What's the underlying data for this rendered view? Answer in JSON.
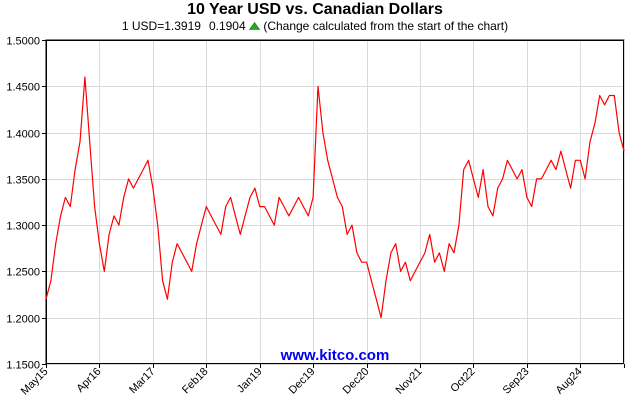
{
  "chart_data": {
    "type": "line",
    "title": "10 Year USD vs. Canadian Dollars",
    "subtitle": {
      "rate_text": "1 USD=1.3919",
      "change_value": "0.1904",
      "change_note": "(Change calculated from the start of the chart)"
    },
    "watermark": "www.kitco.com",
    "ylim": [
      1.15,
      1.5
    ],
    "yticks": [
      1.15,
      1.2,
      1.25,
      1.3,
      1.35,
      1.4,
      1.45,
      1.5
    ],
    "ytick_labels": [
      "1.1500",
      "1.2000",
      "1.2500",
      "1.3000",
      "1.3500",
      "1.4000",
      "1.4500",
      "1.5000"
    ],
    "xlim": [
      0,
      119
    ],
    "xticks": [
      0,
      11,
      22,
      33,
      44,
      55,
      66,
      77,
      88,
      99,
      110,
      119
    ],
    "xtick_labels": [
      "May15",
      "Apr16",
      "Mar17",
      "Feb18",
      "Jan19",
      "Dec19",
      "Dec20",
      "Nov21",
      "Oct22",
      "Sep23",
      "Aug24",
      ""
    ],
    "x_unit": "months since May 2015",
    "grid": true,
    "series": [
      {
        "color": "#ff0000",
        "x": [
          0,
          1,
          2,
          3,
          4,
          5,
          6,
          7,
          8,
          9,
          10,
          11,
          12,
          13,
          14,
          15,
          16,
          17,
          18,
          19,
          20,
          21,
          22,
          23,
          24,
          25,
          26,
          27,
          28,
          29,
          30,
          31,
          32,
          33,
          34,
          35,
          36,
          37,
          38,
          39,
          40,
          41,
          42,
          43,
          44,
          45,
          46,
          47,
          48,
          49,
          50,
          51,
          52,
          53,
          54,
          55,
          56,
          57,
          58,
          59,
          60,
          61,
          62,
          63,
          64,
          65,
          66,
          67,
          68,
          69,
          70,
          71,
          72,
          73,
          74,
          75,
          76,
          77,
          78,
          79,
          80,
          81,
          82,
          83,
          84,
          85,
          86,
          87,
          88,
          89,
          90,
          91,
          92,
          93,
          94,
          95,
          96,
          97,
          98,
          99,
          100,
          101,
          102,
          103,
          104,
          105,
          106,
          107,
          108,
          109,
          110,
          111,
          112,
          113,
          114,
          115,
          116,
          117,
          118,
          119
        ],
        "values": [
          1.22,
          1.24,
          1.28,
          1.31,
          1.33,
          1.32,
          1.36,
          1.39,
          1.46,
          1.39,
          1.32,
          1.28,
          1.25,
          1.29,
          1.31,
          1.3,
          1.33,
          1.35,
          1.34,
          1.35,
          1.36,
          1.37,
          1.34,
          1.3,
          1.24,
          1.22,
          1.26,
          1.28,
          1.27,
          1.26,
          1.25,
          1.28,
          1.3,
          1.32,
          1.31,
          1.3,
          1.29,
          1.32,
          1.33,
          1.31,
          1.29,
          1.31,
          1.33,
          1.34,
          1.32,
          1.32,
          1.31,
          1.3,
          1.33,
          1.32,
          1.31,
          1.32,
          1.33,
          1.32,
          1.31,
          1.33,
          1.45,
          1.4,
          1.37,
          1.35,
          1.33,
          1.32,
          1.29,
          1.3,
          1.27,
          1.26,
          1.26,
          1.24,
          1.22,
          1.2,
          1.24,
          1.27,
          1.28,
          1.25,
          1.26,
          1.24,
          1.25,
          1.26,
          1.27,
          1.29,
          1.26,
          1.27,
          1.25,
          1.28,
          1.27,
          1.3,
          1.36,
          1.37,
          1.35,
          1.33,
          1.36,
          1.32,
          1.31,
          1.34,
          1.35,
          1.37,
          1.36,
          1.35,
          1.36,
          1.33,
          1.32,
          1.35,
          1.35,
          1.36,
          1.37,
          1.36,
          1.38,
          1.36,
          1.34,
          1.37,
          1.37,
          1.35,
          1.39,
          1.41,
          1.44,
          1.43,
          1.44,
          1.44,
          1.4,
          1.38
        ]
      }
    ]
  }
}
